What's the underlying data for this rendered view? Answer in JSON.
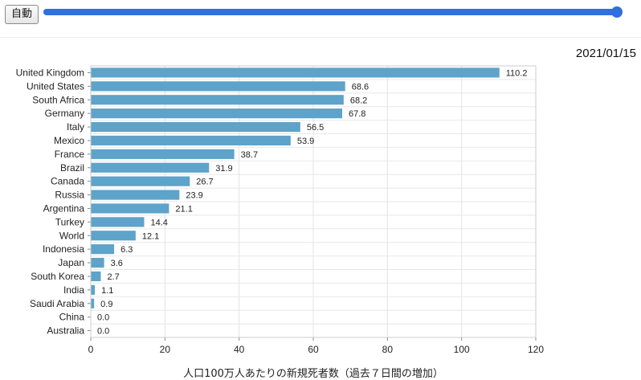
{
  "controls": {
    "auto_button_label": "自動",
    "slider_progress": 1.0
  },
  "date": "2021/01/15",
  "chart_data": {
    "type": "bar",
    "orientation": "horizontal",
    "categories": [
      "United Kingdom",
      "United States",
      "South Africa",
      "Germany",
      "Italy",
      "Mexico",
      "France",
      "Brazil",
      "Canada",
      "Russia",
      "Argentina",
      "Turkey",
      "World",
      "Indonesia",
      "Japan",
      "South Korea",
      "India",
      "Saudi Arabia",
      "China",
      "Australia"
    ],
    "values": [
      110.2,
      68.6,
      68.2,
      67.8,
      56.5,
      53.9,
      38.7,
      31.9,
      26.7,
      23.9,
      21.1,
      14.4,
      12.1,
      6.3,
      3.6,
      2.7,
      1.1,
      0.9,
      0.0,
      0.0
    ],
    "value_labels": [
      "110.2",
      "68.6",
      "68.2",
      "67.8",
      "56.5",
      "53.9",
      "38.7",
      "31.9",
      "26.7",
      "23.9",
      "21.1",
      "14.4",
      "12.1",
      "6.3",
      "3.6",
      "2.7",
      "1.1",
      "0.9",
      "0.0",
      "0.0"
    ],
    "xlim": [
      0,
      120
    ],
    "xticks": [
      0,
      20,
      40,
      60,
      80,
      100,
      120
    ],
    "xlabel": "人口100万人あたりの新規死者数（過去７日間の増加）",
    "ylabel": "",
    "title": "",
    "grid": true,
    "bar_color": "#5ea3c9"
  }
}
